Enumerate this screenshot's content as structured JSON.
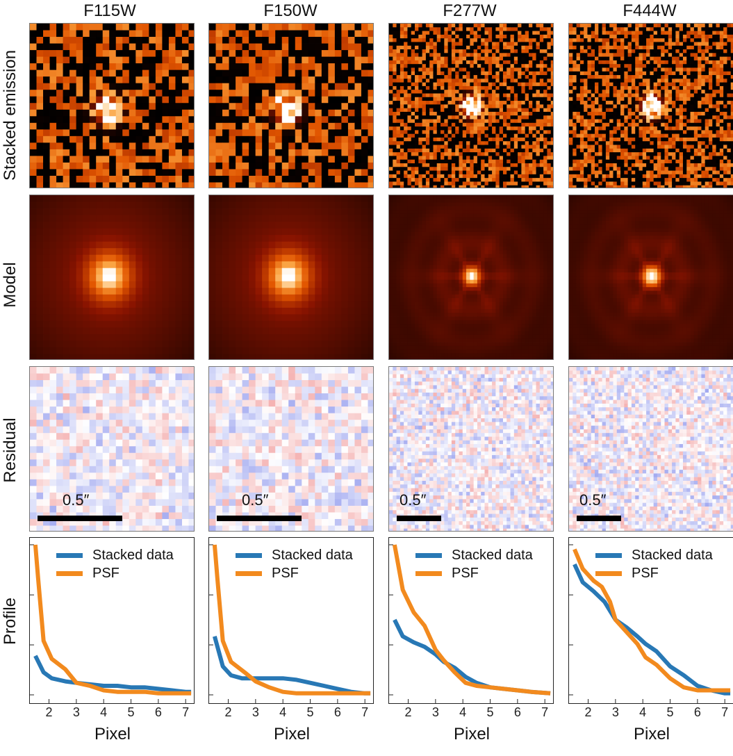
{
  "columns": [
    {
      "title": "F115W",
      "scale_label": "0.5″",
      "grid": 25,
      "psf_peak": 1.0,
      "data_peak": 0.26
    },
    {
      "title": "F150W",
      "scale_label": "0.5″",
      "grid": 25,
      "psf_peak": 1.0,
      "data_peak": 0.39
    },
    {
      "title": "F277W",
      "scale_label": "0.5″",
      "grid": 45,
      "psf_peak": 1.0,
      "data_peak": 0.5
    },
    {
      "title": "F444W",
      "scale_label": "0.5″",
      "grid": 45,
      "psf_peak": 1.0,
      "data_peak": 0.87
    }
  ],
  "row_labels": {
    "stacked": "Stacked emission",
    "model": "Model",
    "residual": "Residual",
    "profile": "Profile"
  },
  "legend": {
    "data": "Stacked data",
    "psf": "PSF"
  },
  "colors": {
    "data": "#2878b5",
    "psf": "#f28a1e"
  },
  "xlabel": "Pixel",
  "chart_data": [
    {
      "type": "line",
      "title": "F115W",
      "xlabel": "Pixel",
      "ylabel": "Profile",
      "xlim": [
        1.3,
        7.3
      ],
      "x_ticks": [
        2,
        3,
        4,
        5,
        6,
        7
      ],
      "series": [
        {
          "name": "Stacked data",
          "x": [
            1.5,
            1.8,
            2.1,
            2.6,
            3.0,
            3.5,
            4.0,
            4.5,
            5.0,
            5.5,
            6.0,
            6.5,
            7.0,
            7.2
          ],
          "values": [
            0.26,
            0.15,
            0.11,
            0.09,
            0.08,
            0.07,
            0.06,
            0.06,
            0.05,
            0.05,
            0.04,
            0.03,
            0.02,
            0.02
          ]
        },
        {
          "name": "PSF",
          "x": [
            1.5,
            1.6,
            1.8,
            2.1,
            2.6,
            3.0,
            3.5,
            4.0,
            4.5,
            5.0,
            5.5,
            6.0,
            6.5,
            7.0,
            7.2
          ],
          "values": [
            1.0,
            0.78,
            0.36,
            0.24,
            0.17,
            0.08,
            0.06,
            0.03,
            0.02,
            0.02,
            0.02,
            0.01,
            0.01,
            0.01,
            0.01
          ]
        }
      ]
    },
    {
      "type": "line",
      "title": "F150W",
      "xlabel": "Pixel",
      "ylabel": "Profile",
      "xlim": [
        1.3,
        7.3
      ],
      "x_ticks": [
        2,
        3,
        4,
        5,
        6,
        7
      ],
      "series": [
        {
          "name": "Stacked data",
          "x": [
            1.5,
            1.8,
            2.1,
            2.5,
            3.0,
            3.5,
            4.0,
            4.5,
            5.0,
            5.5,
            6.0,
            6.5,
            7.0,
            7.2
          ],
          "values": [
            0.39,
            0.19,
            0.13,
            0.11,
            0.11,
            0.11,
            0.11,
            0.1,
            0.08,
            0.06,
            0.04,
            0.02,
            0.01,
            0.01
          ]
        },
        {
          "name": "PSF",
          "x": [
            1.5,
            1.6,
            1.8,
            2.1,
            2.6,
            3.0,
            3.5,
            4.0,
            4.5,
            5.0,
            5.5,
            6.0,
            6.5,
            7.0,
            7.2
          ],
          "values": [
            1.0,
            0.78,
            0.36,
            0.22,
            0.15,
            0.09,
            0.05,
            0.02,
            0.01,
            0.01,
            0.01,
            0.01,
            0.01,
            0.01,
            0.01
          ]
        }
      ]
    },
    {
      "type": "line",
      "title": "F277W",
      "xlabel": "Pixel",
      "ylabel": "Profile",
      "xlim": [
        1.3,
        7.3
      ],
      "x_ticks": [
        2,
        3,
        4,
        5,
        6,
        7
      ],
      "series": [
        {
          "name": "Stacked data",
          "x": [
            1.5,
            1.8,
            2.2,
            2.6,
            3.0,
            3.3,
            3.7,
            4.1,
            4.5,
            5.0,
            5.5,
            6.0,
            6.5,
            7.2
          ],
          "values": [
            0.5,
            0.39,
            0.35,
            0.32,
            0.27,
            0.22,
            0.18,
            0.12,
            0.08,
            0.05,
            0.04,
            0.03,
            0.02,
            0.01
          ]
        },
        {
          "name": "PSF",
          "x": [
            1.5,
            1.8,
            2.2,
            2.6,
            3.0,
            3.3,
            3.7,
            4.1,
            4.5,
            5.0,
            5.5,
            6.0,
            6.5,
            7.2
          ],
          "values": [
            1.0,
            0.7,
            0.55,
            0.46,
            0.3,
            0.23,
            0.15,
            0.08,
            0.06,
            0.05,
            0.04,
            0.03,
            0.02,
            0.01
          ]
        }
      ]
    },
    {
      "type": "line",
      "title": "F444W",
      "xlabel": "Pixel",
      "ylabel": "Profile",
      "xlim": [
        1.3,
        7.3
      ],
      "x_ticks": [
        2,
        3,
        4,
        5,
        6,
        7
      ],
      "series": [
        {
          "name": "Stacked data",
          "x": [
            1.5,
            1.8,
            2.2,
            2.6,
            3.0,
            3.4,
            3.8,
            4.1,
            4.5,
            5.0,
            5.5,
            6.0,
            6.5,
            7.0,
            7.2
          ],
          "values": [
            0.87,
            0.75,
            0.69,
            0.62,
            0.5,
            0.45,
            0.39,
            0.34,
            0.29,
            0.19,
            0.13,
            0.06,
            0.03,
            0.01,
            0.01
          ]
        },
        {
          "name": "PSF",
          "x": [
            1.5,
            1.8,
            2.2,
            2.5,
            2.8,
            3.0,
            3.4,
            3.8,
            4.1,
            4.5,
            5.0,
            5.5,
            6.0,
            6.5,
            7.0,
            7.2
          ],
          "values": [
            0.97,
            0.84,
            0.76,
            0.72,
            0.62,
            0.5,
            0.42,
            0.34,
            0.25,
            0.2,
            0.11,
            0.05,
            0.03,
            0.03,
            0.03,
            0.03
          ]
        }
      ]
    }
  ]
}
